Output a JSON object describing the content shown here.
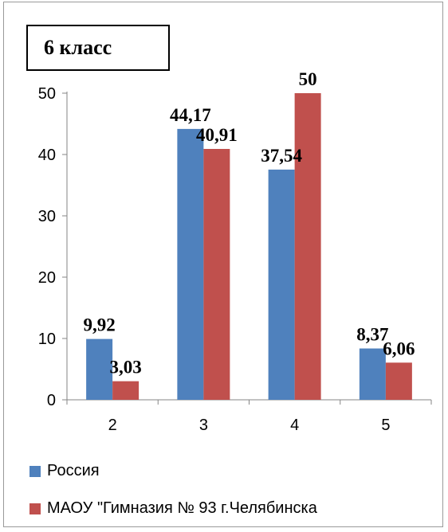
{
  "chart_data": {
    "type": "bar",
    "title": "6 класс",
    "categories": [
      "2",
      "3",
      "4",
      "5"
    ],
    "series": [
      {
        "name": "Россия",
        "values": [
          9.92,
          44.17,
          37.54,
          8.37
        ],
        "labels": [
          "9,92",
          "44,17",
          "37,54",
          "8,37"
        ],
        "color": "#4f81bd"
      },
      {
        "name": "МАОУ \"Гимназия № 93 г.Челябинска",
        "values": [
          3.03,
          40.91,
          50,
          6.06
        ],
        "labels": [
          "3,03",
          "40,91",
          "50",
          "6,06"
        ],
        "color": "#c0504d"
      }
    ],
    "ylim": [
      0,
      50
    ],
    "yticks": [
      "0",
      "10",
      "20",
      "30",
      "40",
      "50"
    ],
    "grid": false,
    "legend": "bottom"
  }
}
